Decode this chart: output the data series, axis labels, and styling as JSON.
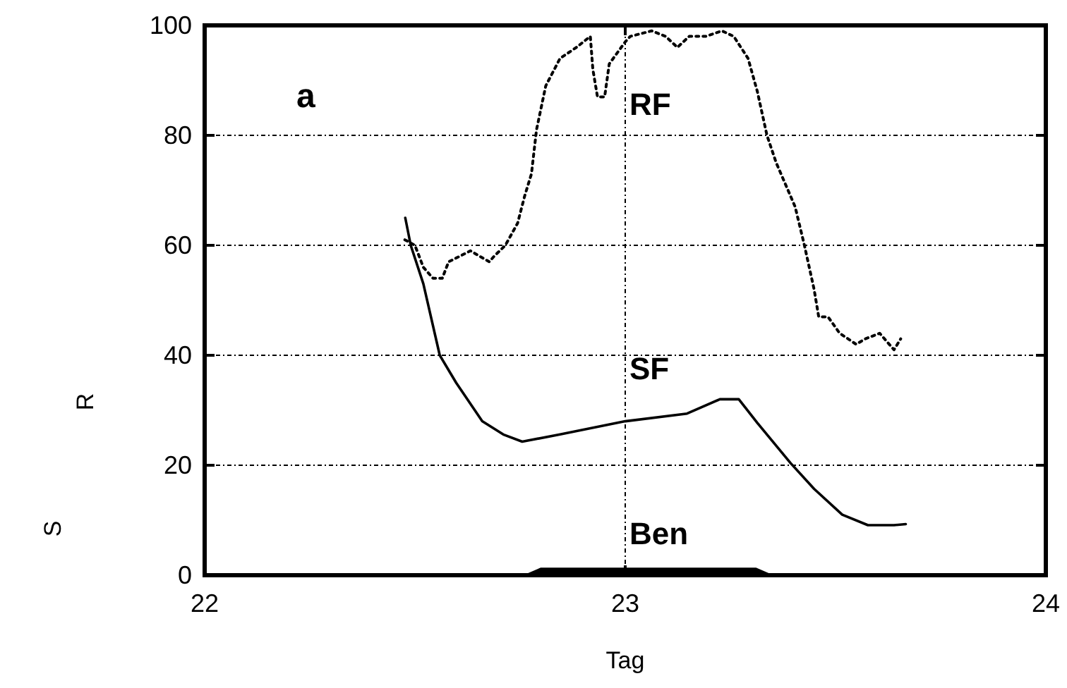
{
  "chart_data": {
    "type": "line",
    "xlabel": "Tag",
    "ylabel": "S R",
    "xlim": [
      22,
      24
    ],
    "xticks": [
      22,
      23,
      24
    ],
    "ylim": [
      0,
      100
    ],
    "yticks": [
      0,
      20,
      40,
      60,
      80,
      100
    ],
    "grid": true,
    "annotations": [
      "a"
    ],
    "series": [
      {
        "name": "RF",
        "color": "#000000",
        "line_style": "dotted",
        "x": [
          22.476,
          22.5,
          22.52,
          22.543,
          22.565,
          22.58,
          22.632,
          22.654,
          22.677,
          22.688,
          22.715,
          22.744,
          22.761,
          22.777,
          22.789,
          22.811,
          22.845,
          22.884,
          22.917,
          22.923,
          22.934,
          22.951,
          22.962,
          23.0,
          23.012,
          23.063,
          23.096,
          23.124,
          23.152,
          23.191,
          23.23,
          23.258,
          23.292,
          23.314,
          23.337,
          23.359,
          23.404,
          23.426,
          23.449,
          23.46,
          23.482,
          23.51,
          23.549,
          23.571,
          23.605,
          23.639,
          23.655
        ],
        "values": [
          61,
          60,
          56,
          54,
          54,
          57,
          59,
          58,
          57,
          58,
          60,
          64,
          69,
          73,
          81,
          89,
          94,
          96,
          98,
          92,
          87,
          87,
          93,
          97,
          98,
          99,
          98,
          96,
          98,
          98,
          99,
          98,
          94,
          88,
          80,
          75,
          67,
          60,
          52,
          47,
          47,
          44,
          42,
          43,
          44,
          41,
          43
        ]
      },
      {
        "name": "SF",
        "color": "#000000",
        "line_style": "solid",
        "x": [
          22.477,
          22.49,
          22.52,
          22.559,
          22.598,
          22.66,
          22.71,
          22.755,
          22.845,
          23.0,
          23.147,
          23.225,
          23.27,
          23.314,
          23.393,
          23.449,
          23.516,
          23.577,
          23.639,
          23.667
        ],
        "values": [
          65,
          60,
          53,
          40,
          35,
          28,
          25.6,
          24.3,
          25.6,
          28,
          29.4,
          32,
          32,
          27.7,
          20.4,
          15.7,
          11,
          9.1,
          9.1,
          9.3
        ]
      },
      {
        "name": "Ben",
        "type": "area",
        "color": "#000000",
        "x": [
          22.77,
          22.8,
          23.31,
          23.34
        ],
        "values": [
          0,
          1,
          1,
          0
        ]
      }
    ]
  }
}
